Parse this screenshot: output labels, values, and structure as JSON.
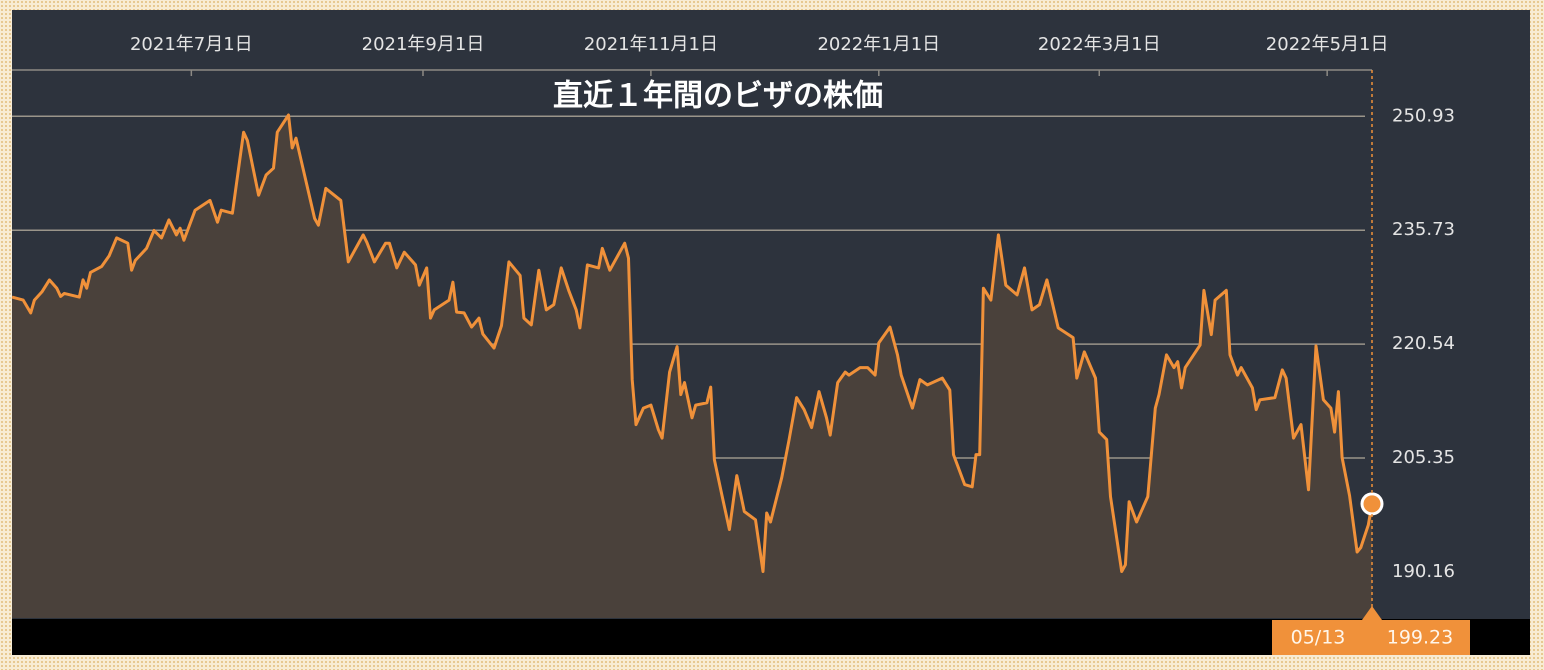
{
  "chart_data": {
    "type": "line",
    "title": "直近１年間のビザの株価",
    "x": [
      "2021-05-14",
      "2021-05-17",
      "2021-05-19",
      "2021-05-20",
      "2021-05-22",
      "2021-05-24",
      "2021-05-26",
      "2021-05-27",
      "2021-05-28",
      "2021-06-01",
      "2021-06-02",
      "2021-06-03",
      "2021-06-04",
      "2021-06-07",
      "2021-06-09",
      "2021-06-11",
      "2021-06-14",
      "2021-06-15",
      "2021-06-16",
      "2021-06-19",
      "2021-06-21",
      "2021-06-23",
      "2021-06-25",
      "2021-06-27",
      "2021-06-28",
      "2021-06-29",
      "2021-07-02",
      "2021-07-06",
      "2021-07-08",
      "2021-07-09",
      "2021-07-12",
      "2021-07-15",
      "2021-07-16",
      "2021-07-19",
      "2021-07-21",
      "2021-07-23",
      "2021-07-24",
      "2021-07-27",
      "2021-07-28",
      "2021-07-29",
      "2021-08-03",
      "2021-08-04",
      "2021-08-06",
      "2021-08-10",
      "2021-08-12",
      "2021-08-16",
      "2021-08-17",
      "2021-08-19",
      "2021-08-22",
      "2021-08-23",
      "2021-08-25",
      "2021-08-27",
      "2021-08-30",
      "2021-08-31",
      "2021-09-02",
      "2021-09-03",
      "2021-09-04",
      "2021-09-08",
      "2021-09-09",
      "2021-09-10",
      "2021-09-12",
      "2021-09-14",
      "2021-09-16",
      "2021-09-17",
      "2021-09-20",
      "2021-09-22",
      "2021-09-24",
      "2021-09-27",
      "2021-09-28",
      "2021-09-30",
      "2021-10-02",
      "2021-10-04",
      "2021-10-06",
      "2021-10-08",
      "2021-10-10",
      "2021-10-12",
      "2021-10-13",
      "2021-10-15",
      "2021-10-18",
      "2021-10-19",
      "2021-10-21",
      "2021-10-25",
      "2021-10-26",
      "2021-10-27",
      "2021-10-28",
      "2021-10-30",
      "2021-11-01",
      "2021-11-03",
      "2021-11-04",
      "2021-11-06",
      "2021-11-08",
      "2021-11-09",
      "2021-11-10",
      "2021-11-12",
      "2021-11-13",
      "2021-11-16",
      "2021-11-17",
      "2021-11-18",
      "2021-11-20",
      "2021-11-22",
      "2021-11-24",
      "2021-11-26",
      "2021-11-29",
      "2021-12-01",
      "2021-12-02",
      "2021-12-03",
      "2021-12-06",
      "2021-12-08",
      "2021-12-10",
      "2021-12-12",
      "2021-12-14",
      "2021-12-16",
      "2021-12-18",
      "2021-12-19",
      "2021-12-21",
      "2021-12-23",
      "2021-12-24",
      "2021-12-27",
      "2021-12-29",
      "2021-12-31",
      "2022-01-01",
      "2022-01-04",
      "2022-01-06",
      "2022-01-07",
      "2022-01-10",
      "2022-01-12",
      "2022-01-14",
      "2022-01-18",
      "2022-01-20",
      "2022-01-21",
      "2022-01-24",
      "2022-01-26",
      "2022-01-27",
      "2022-01-28",
      "2022-01-29",
      "2022-01-31",
      "2022-02-02",
      "2022-02-04",
      "2022-02-07",
      "2022-02-09",
      "2022-02-11",
      "2022-02-13",
      "2022-02-15",
      "2022-02-18",
      "2022-02-22",
      "2022-02-23",
      "2022-02-25",
      "2022-02-28",
      "2022-03-01",
      "2022-03-03",
      "2022-03-04",
      "2022-03-07",
      "2022-03-08",
      "2022-03-09",
      "2022-03-11",
      "2022-03-14",
      "2022-03-16",
      "2022-03-17",
      "2022-03-19",
      "2022-03-21",
      "2022-03-22",
      "2022-03-23",
      "2022-03-24",
      "2022-03-28",
      "2022-03-29",
      "2022-03-31",
      "2022-04-01",
      "2022-04-04",
      "2022-04-05",
      "2022-04-07",
      "2022-04-08",
      "2022-04-11",
      "2022-04-12",
      "2022-04-13",
      "2022-04-17",
      "2022-04-19",
      "2022-04-20",
      "2022-04-22",
      "2022-04-24",
      "2022-04-26",
      "2022-04-28",
      "2022-04-30",
      "2022-05-02",
      "2022-05-03",
      "2022-05-04",
      "2022-05-05",
      "2022-05-07",
      "2022-05-09",
      "2022-05-10",
      "2022-05-12",
      "2022-05-13"
    ],
    "values": [
      226.8,
      226.4,
      224.7,
      226.4,
      227.5,
      229.1,
      228.0,
      226.9,
      227.3,
      226.8,
      229.1,
      228.0,
      230.1,
      230.9,
      232.3,
      234.7,
      234.0,
      230.4,
      231.7,
      233.3,
      235.7,
      234.7,
      237.1,
      235.1,
      236.0,
      234.4,
      238.4,
      239.7,
      236.8,
      238.4,
      238.0,
      248.8,
      247.7,
      240.4,
      243.1,
      244.0,
      248.8,
      251.1,
      246.7,
      248.0,
      237.3,
      236.4,
      241.3,
      239.7,
      231.5,
      235.1,
      234.1,
      231.5,
      234.0,
      234.0,
      230.7,
      232.8,
      231.1,
      228.4,
      230.7,
      224.0,
      225.1,
      226.4,
      228.8,
      224.8,
      224.7,
      222.8,
      224.0,
      221.9,
      220.0,
      223.0,
      231.5,
      229.7,
      224.0,
      223.1,
      230.4,
      225.1,
      225.8,
      230.7,
      227.7,
      225.1,
      222.7,
      231.1,
      230.7,
      233.3,
      230.4,
      234.0,
      232.0,
      215.8,
      209.8,
      212.0,
      212.4,
      209.1,
      208.0,
      216.8,
      220.2,
      213.8,
      215.4,
      210.7,
      212.4,
      212.7,
      214.8,
      205.1,
      200.4,
      195.8,
      203.0,
      198.2,
      197.1,
      190.2,
      198.0,
      196.8,
      202.7,
      207.8,
      213.4,
      211.8,
      209.4,
      214.2,
      210.7,
      208.4,
      215.4,
      216.8,
      216.4,
      217.4,
      217.4,
      216.4,
      220.7,
      222.8,
      219.1,
      216.4,
      212.0,
      215.8,
      215.1,
      216.0,
      214.4,
      205.8,
      201.8,
      201.5,
      205.8,
      205.8,
      228.0,
      226.4,
      235.1,
      228.4,
      227.1,
      230.7,
      225.1,
      225.8,
      229.1,
      222.7,
      221.4,
      216.0,
      219.5,
      216.0,
      208.8,
      207.8,
      200.2,
      190.2,
      191.1,
      199.5,
      196.8,
      200.2,
      212.0,
      213.8,
      219.1,
      217.4,
      218.2,
      214.7,
      217.4,
      220.4,
      227.7,
      221.8,
      226.4,
      227.7,
      219.1,
      216.4,
      217.4,
      214.7,
      211.8,
      213.1,
      213.4,
      217.1,
      216.0,
      208.0,
      209.8,
      201.1,
      220.3,
      213.1,
      212.0,
      208.8,
      214.2,
      205.4,
      200.3,
      192.8,
      193.4,
      196.4,
      199.23
    ],
    "color": "#f0913a",
    "xlim": [
      "2021-05-14",
      "2022-05-13"
    ],
    "xticks": [
      {
        "value": "2021-07-01",
        "label": "2021年7月1日"
      },
      {
        "value": "2021-09-01",
        "label": "2021年9月1日"
      },
      {
        "value": "2021-11-01",
        "label": "2021年11月1日"
      },
      {
        "value": "2022-01-01",
        "label": "2022年1月1日"
      },
      {
        "value": "2022-03-01",
        "label": "2022年3月1日"
      },
      {
        "value": "2022-05-01",
        "label": "2022年5月1日"
      }
    ],
    "ylim": [
      184.0,
      257.1
    ],
    "yticks": [
      190.16,
      205.35,
      220.54,
      235.73,
      250.93
    ],
    "grid": true,
    "cursor_label": "05/13"
  }
}
